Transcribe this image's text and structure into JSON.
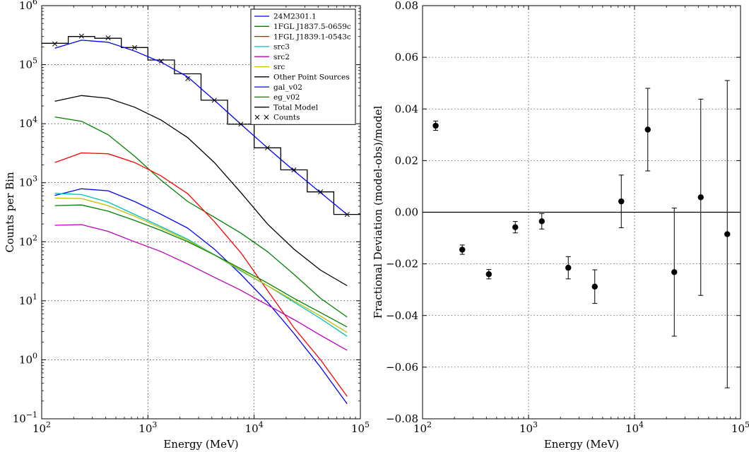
{
  "chart_data": [
    {
      "type": "line",
      "xlabel": "Energy (MeV)",
      "ylabel": "Counts per Bin",
      "xscale": "log",
      "yscale": "log",
      "xlim": [
        100,
        100000
      ],
      "ylim": [
        0.1,
        1000000
      ],
      "x_ticks": [
        {
          "base": "10",
          "exp": "2",
          "value": 100
        },
        {
          "base": "10",
          "exp": "3",
          "value": 1000
        },
        {
          "base": "10",
          "exp": "4",
          "value": 10000
        },
        {
          "base": "10",
          "exp": "5",
          "value": 100000
        }
      ],
      "y_ticks": [
        {
          "base": "10",
          "exp": "−1",
          "value": 0.1
        },
        {
          "base": "10",
          "exp": "0",
          "value": 1
        },
        {
          "base": "10",
          "exp": "1",
          "value": 10
        },
        {
          "base": "10",
          "exp": "2",
          "value": 100
        },
        {
          "base": "10",
          "exp": "3",
          "value": 1000
        },
        {
          "base": "10",
          "exp": "4",
          "value": 10000
        },
        {
          "base": "10",
          "exp": "5",
          "value": 100000
        },
        {
          "base": "10",
          "exp": "6",
          "value": 1000000
        }
      ],
      "grid": true,
      "legend_position": "top-right",
      "x": [
        133,
        237,
        422,
        750,
        1334,
        2371,
        4217,
        7499,
        13335,
        23714,
        42170,
        74989
      ],
      "series": [
        {
          "name": "24M2301.1",
          "color": "#0000ff",
          "values": [
            610,
            790,
            730,
            480,
            290,
            170,
            75,
            28,
            9.5,
            2.8,
            0.75,
            0.18
          ]
        },
        {
          "name": "1FGL J1837.5-0659c",
          "color": "#008000",
          "values": [
            13000,
            11000,
            6500,
            2800,
            1100,
            480,
            260,
            140,
            68,
            28,
            11,
            5.3
          ]
        },
        {
          "name": "1FGL J1839.1-0543c",
          "color": "#ff0000",
          "values": [
            2200,
            3200,
            3100,
            2200,
            1300,
            650,
            220,
            65,
            15,
            3.5,
            1.0,
            0.24
          ]
        },
        {
          "name": "src3",
          "color": "#00bfbf",
          "values": [
            660,
            630,
            470,
            290,
            180,
            110,
            60,
            32,
            18,
            9.5,
            5.0,
            2.5
          ]
        },
        {
          "name": "src2",
          "color": "#bf00bf",
          "values": [
            190,
            195,
            150,
            100,
            68,
            42,
            25,
            15,
            8.5,
            4.8,
            2.6,
            1.45
          ]
        },
        {
          "name": "src",
          "color": "#bfbf00",
          "values": [
            550,
            540,
            410,
            270,
            170,
            105,
            60,
            33,
            18,
            10,
            5.5,
            2.9
          ]
        },
        {
          "name": "Other Point Sources",
          "color": "#000000",
          "values": [
            24000,
            30000,
            27000,
            19000,
            11500,
            5800,
            2200,
            680,
            200,
            75,
            33,
            18
          ]
        },
        {
          "name": "gal_v02",
          "color": "#0000ff",
          "values": [
            190000,
            260000,
            240000,
            170000,
            110000,
            62000,
            25000,
            9800,
            3900,
            1600,
            680,
            290
          ]
        },
        {
          "name": "eg_v02",
          "color": "#008000",
          "values": [
            410,
            420,
            330,
            230,
            155,
            100,
            60,
            35,
            20,
            11,
            6.3,
            3.6
          ]
        }
      ],
      "total_model": {
        "name": "Total Model",
        "color": "#000000",
        "bin_edges": [
          100,
          178,
          316,
          562,
          1000,
          1778,
          3162,
          5623,
          10000,
          17783,
          31623,
          56234,
          100000
        ],
        "values": [
          230000,
          300000,
          280000,
          195000,
          120000,
          70000,
          25000,
          9800,
          3900,
          1650,
          700,
          290
        ]
      },
      "counts": {
        "name": "Counts",
        "marker": "x",
        "values": [
          225000,
          305000,
          285000,
          195000,
          115000,
          58000,
          25000,
          9800,
          3900,
          1650,
          700,
          290
        ]
      }
    },
    {
      "type": "scatter",
      "xlabel": "Energy (MeV)",
      "ylabel": "Fractional Deviation (model-obs)/model",
      "xscale": "log",
      "xlim": [
        100,
        100000
      ],
      "ylim": [
        -0.08,
        0.08
      ],
      "x_ticks": [
        {
          "base": "10",
          "exp": "2",
          "value": 100
        },
        {
          "base": "10",
          "exp": "3",
          "value": 1000
        },
        {
          "base": "10",
          "exp": "4",
          "value": 10000
        },
        {
          "base": "10",
          "exp": "5",
          "value": 100000
        }
      ],
      "y_ticks": [
        {
          "label": "−0.08",
          "value": -0.08
        },
        {
          "label": "−0.06",
          "value": -0.06
        },
        {
          "label": "−0.04",
          "value": -0.04
        },
        {
          "label": "−0.02",
          "value": -0.02
        },
        {
          "label": "0.00",
          "value": 0
        },
        {
          "label": "0.02",
          "value": 0.02
        },
        {
          "label": "0.04",
          "value": 0.04
        },
        {
          "label": "0.06",
          "value": 0.06
        },
        {
          "label": "0.08",
          "value": 0.08
        }
      ],
      "grid": true,
      "reference_line": 0,
      "x": [
        133,
        237,
        422,
        750,
        1334,
        2371,
        4217,
        7499,
        13335,
        23714,
        42170,
        74989
      ],
      "values": [
        0.0335,
        -0.0145,
        -0.024,
        -0.0058,
        -0.0035,
        -0.0215,
        -0.0288,
        0.0042,
        0.032,
        -0.0232,
        0.0058,
        -0.0085
      ],
      "errors": [
        0.0018,
        0.0018,
        0.0018,
        0.0022,
        0.003,
        0.0043,
        0.0065,
        0.0102,
        0.016,
        0.0248,
        0.038,
        0.0595
      ]
    }
  ]
}
